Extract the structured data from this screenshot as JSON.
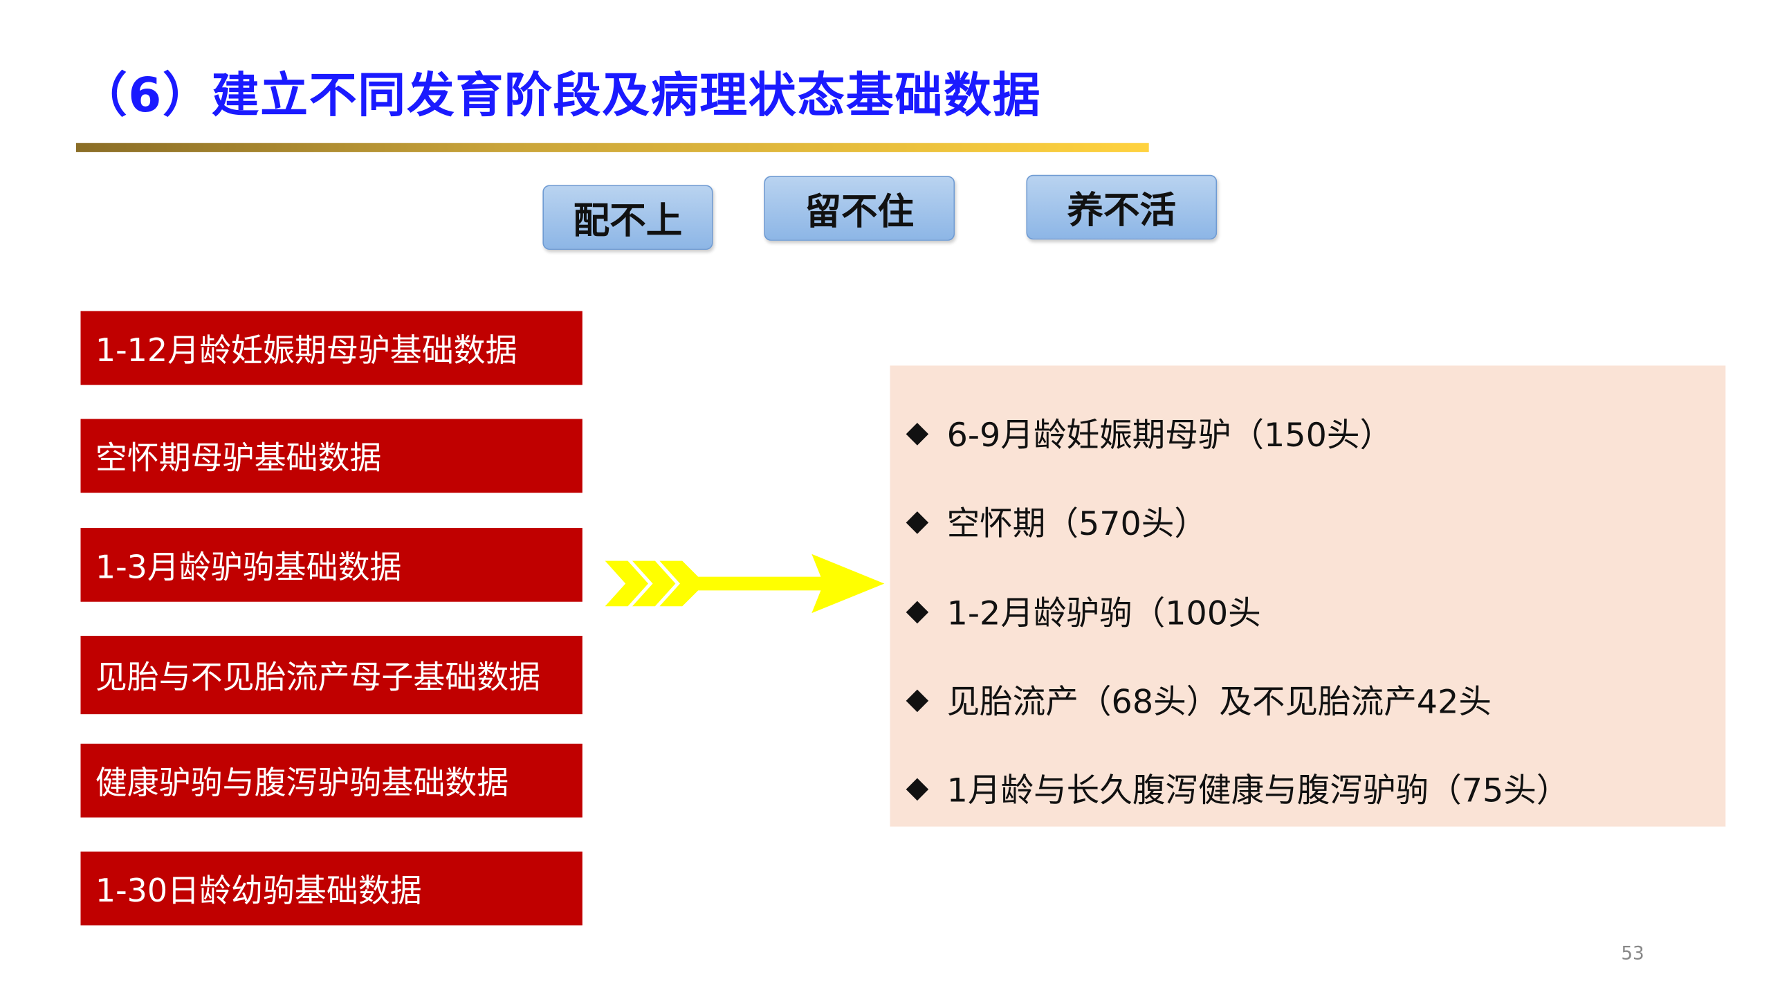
{
  "title": "（6）建立不同发育阶段及病理状态基础数据",
  "tags": [
    "配不上",
    "留不住",
    "养不活"
  ],
  "categories": [
    "1-12月龄妊娠期母驴基础数据",
    "空怀期母驴基础数据",
    "1-3月龄驴驹基础数据",
    "见胎与不见胎流产母子基础数据",
    "健康驴驹与腹泻驴驹基础数据",
    "1-30日龄幼驹基础数据"
  ],
  "samples": [
    "6-9月龄妊娠期母驴（150头）",
    "空怀期（570头）",
    "1-2月龄驴驹（100头",
    "见胎流产（68头）及不见胎流产42头",
    "1月龄与长久腹泻健康与腹泻驴驹（75头）"
  ],
  "bullet": "◆",
  "page_number": "53",
  "colors": {
    "title": "#1a1aff",
    "category_bg": "#c00000",
    "panel_bg": "#fae3d6",
    "arrow": "#ffff00"
  }
}
